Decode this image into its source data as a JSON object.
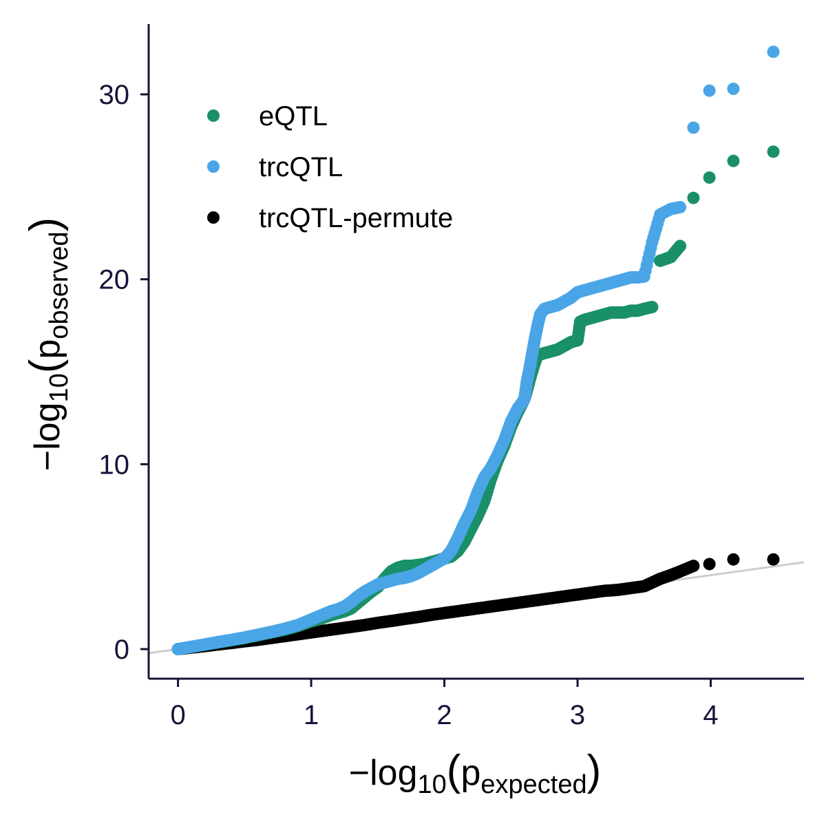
{
  "chart_data": {
    "type": "scatter",
    "xlabel": {
      "prefix": "−log",
      "base": "10",
      "open": "(",
      "var": "p",
      "sub": "expected",
      "close": ")"
    },
    "ylabel": {
      "prefix": "−log",
      "base": "10",
      "open": "(",
      "var": "p",
      "sub": "observed",
      "close": ")"
    },
    "xlim": [
      -0.22,
      4.7
    ],
    "ylim": [
      -1.6,
      33.8
    ],
    "x_ticks": [
      0,
      1,
      2,
      3,
      4
    ],
    "y_ticks": [
      0,
      10,
      20,
      30
    ],
    "grid": false,
    "legend_position": "top-left",
    "reference_line": {
      "from": [
        -0.22,
        -0.22
      ],
      "to": [
        4.7,
        4.7
      ],
      "color": "#cccccc"
    },
    "colors": {
      "axis": "#1a1038",
      "tick_text": "#1a1038"
    },
    "series": [
      {
        "name": "eQTL",
        "color": "#1a9068",
        "points": [
          [
            0,
            0
          ],
          [
            0.1,
            0.12
          ],
          [
            0.2,
            0.24
          ],
          [
            0.3,
            0.36
          ],
          [
            0.4,
            0.48
          ],
          [
            0.5,
            0.6
          ],
          [
            0.6,
            0.75
          ],
          [
            0.7,
            0.9
          ],
          [
            0.8,
            1.05
          ],
          [
            0.9,
            1.25
          ],
          [
            1.0,
            1.5
          ],
          [
            1.05,
            1.6
          ],
          [
            1.1,
            1.72
          ],
          [
            1.15,
            1.85
          ],
          [
            1.2,
            1.95
          ],
          [
            1.25,
            2.05
          ],
          [
            1.3,
            2.2
          ],
          [
            1.35,
            2.5
          ],
          [
            1.4,
            2.8
          ],
          [
            1.45,
            3.1
          ],
          [
            1.5,
            3.35
          ],
          [
            1.55,
            3.8
          ],
          [
            1.6,
            4.2
          ],
          [
            1.65,
            4.4
          ],
          [
            1.7,
            4.5
          ],
          [
            1.75,
            4.5
          ],
          [
            1.8,
            4.55
          ],
          [
            1.85,
            4.6
          ],
          [
            1.9,
            4.7
          ],
          [
            1.95,
            4.8
          ],
          [
            2.0,
            4.9
          ],
          [
            2.05,
            5.0
          ],
          [
            2.1,
            5.3
          ],
          [
            2.15,
            5.8
          ],
          [
            2.2,
            6.5
          ],
          [
            2.25,
            7.2
          ],
          [
            2.3,
            8.0
          ],
          [
            2.35,
            9.2
          ],
          [
            2.4,
            10.2
          ],
          [
            2.45,
            11.0
          ],
          [
            2.5,
            12.0
          ],
          [
            2.55,
            12.8
          ],
          [
            2.6,
            13.5
          ],
          [
            2.62,
            14.0
          ],
          [
            2.65,
            14.8
          ],
          [
            2.68,
            15.5
          ],
          [
            2.7,
            15.9
          ],
          [
            2.75,
            16.0
          ],
          [
            2.8,
            16.1
          ],
          [
            2.85,
            16.2
          ],
          [
            2.9,
            16.4
          ],
          [
            2.95,
            16.6
          ],
          [
            3.0,
            16.7
          ],
          [
            3.02,
            17.7
          ],
          [
            3.05,
            17.8
          ],
          [
            3.1,
            17.9
          ],
          [
            3.15,
            18.0
          ],
          [
            3.2,
            18.1
          ],
          [
            3.25,
            18.2
          ],
          [
            3.3,
            18.2
          ],
          [
            3.35,
            18.2
          ],
          [
            3.4,
            18.3
          ],
          [
            3.45,
            18.3
          ],
          [
            3.5,
            18.4
          ],
          [
            3.56,
            18.5
          ],
          [
            3.62,
            21.0
          ],
          [
            3.7,
            21.2
          ],
          [
            3.77,
            21.8
          ],
          [
            3.87,
            24.4
          ],
          [
            3.99,
            25.5
          ],
          [
            4.17,
            26.4
          ],
          [
            4.47,
            26.9
          ]
        ]
      },
      {
        "name": "trcQTL",
        "color": "#4aa5e6",
        "points": [
          [
            0,
            0
          ],
          [
            0.1,
            0.12
          ],
          [
            0.2,
            0.25
          ],
          [
            0.3,
            0.38
          ],
          [
            0.4,
            0.5
          ],
          [
            0.5,
            0.63
          ],
          [
            0.6,
            0.78
          ],
          [
            0.7,
            0.93
          ],
          [
            0.8,
            1.1
          ],
          [
            0.9,
            1.3
          ],
          [
            1.0,
            1.6
          ],
          [
            1.05,
            1.75
          ],
          [
            1.1,
            1.9
          ],
          [
            1.15,
            2.05
          ],
          [
            1.2,
            2.15
          ],
          [
            1.25,
            2.3
          ],
          [
            1.3,
            2.55
          ],
          [
            1.35,
            2.85
          ],
          [
            1.4,
            3.1
          ],
          [
            1.45,
            3.3
          ],
          [
            1.5,
            3.5
          ],
          [
            1.55,
            3.6
          ],
          [
            1.6,
            3.7
          ],
          [
            1.65,
            3.8
          ],
          [
            1.7,
            3.85
          ],
          [
            1.75,
            3.95
          ],
          [
            1.8,
            4.1
          ],
          [
            1.85,
            4.3
          ],
          [
            1.9,
            4.5
          ],
          [
            1.95,
            4.7
          ],
          [
            2.0,
            4.9
          ],
          [
            2.05,
            5.3
          ],
          [
            2.1,
            6.0
          ],
          [
            2.15,
            6.8
          ],
          [
            2.2,
            7.5
          ],
          [
            2.25,
            8.5
          ],
          [
            2.3,
            9.3
          ],
          [
            2.35,
            9.8
          ],
          [
            2.4,
            10.5
          ],
          [
            2.45,
            11.3
          ],
          [
            2.5,
            12.3
          ],
          [
            2.55,
            13.0
          ],
          [
            2.6,
            13.5
          ],
          [
            2.62,
            14.5
          ],
          [
            2.64,
            15.2
          ],
          [
            2.66,
            16.0
          ],
          [
            2.68,
            16.8
          ],
          [
            2.7,
            17.5
          ],
          [
            2.72,
            18.1
          ],
          [
            2.75,
            18.4
          ],
          [
            2.8,
            18.5
          ],
          [
            2.85,
            18.6
          ],
          [
            2.9,
            18.8
          ],
          [
            2.95,
            19.0
          ],
          [
            3.0,
            19.3
          ],
          [
            3.05,
            19.4
          ],
          [
            3.1,
            19.5
          ],
          [
            3.15,
            19.6
          ],
          [
            3.2,
            19.7
          ],
          [
            3.25,
            19.8
          ],
          [
            3.3,
            19.9
          ],
          [
            3.35,
            20.0
          ],
          [
            3.4,
            20.1
          ],
          [
            3.45,
            20.1
          ],
          [
            3.5,
            20.15
          ],
          [
            3.56,
            22.0
          ],
          [
            3.62,
            23.5
          ],
          [
            3.7,
            23.8
          ],
          [
            3.77,
            23.9
          ],
          [
            3.87,
            28.2
          ],
          [
            3.99,
            30.2
          ],
          [
            4.17,
            30.3
          ],
          [
            4.47,
            32.3
          ]
        ]
      },
      {
        "name": "trcQTL-permute",
        "color": "#000000",
        "points": [
          [
            0,
            0
          ],
          [
            0.1,
            0.08
          ],
          [
            0.2,
            0.16
          ],
          [
            0.3,
            0.25
          ],
          [
            0.4,
            0.33
          ],
          [
            0.5,
            0.42
          ],
          [
            0.6,
            0.5
          ],
          [
            0.7,
            0.6
          ],
          [
            0.8,
            0.7
          ],
          [
            0.9,
            0.8
          ],
          [
            1.0,
            0.9
          ],
          [
            1.1,
            1.0
          ],
          [
            1.2,
            1.1
          ],
          [
            1.3,
            1.2
          ],
          [
            1.4,
            1.3
          ],
          [
            1.5,
            1.42
          ],
          [
            1.6,
            1.52
          ],
          [
            1.7,
            1.63
          ],
          [
            1.8,
            1.73
          ],
          [
            1.9,
            1.85
          ],
          [
            2.0,
            1.95
          ],
          [
            2.1,
            2.05
          ],
          [
            2.2,
            2.15
          ],
          [
            2.3,
            2.25
          ],
          [
            2.4,
            2.35
          ],
          [
            2.5,
            2.45
          ],
          [
            2.6,
            2.55
          ],
          [
            2.7,
            2.65
          ],
          [
            2.8,
            2.75
          ],
          [
            2.9,
            2.85
          ],
          [
            3.0,
            2.95
          ],
          [
            3.1,
            3.05
          ],
          [
            3.2,
            3.15
          ],
          [
            3.3,
            3.2
          ],
          [
            3.4,
            3.3
          ],
          [
            3.5,
            3.4
          ],
          [
            3.56,
            3.6
          ],
          [
            3.62,
            3.8
          ],
          [
            3.7,
            4.0
          ],
          [
            3.77,
            4.2
          ],
          [
            3.87,
            4.5
          ],
          [
            3.99,
            4.6
          ],
          [
            4.17,
            4.85
          ],
          [
            4.47,
            4.85
          ]
        ]
      }
    ]
  }
}
